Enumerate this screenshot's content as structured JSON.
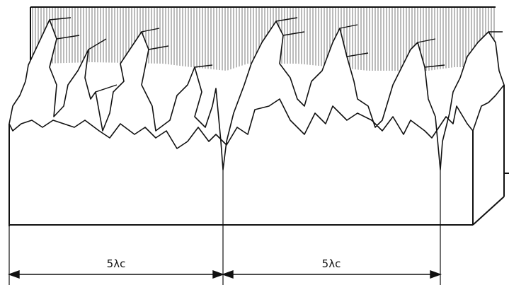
{
  "diagram": {
    "stroke_color": "#111111",
    "hatch_color": "#555555",
    "background": "#ffffff",
    "dimensions": [
      {
        "label": "5λc"
      },
      {
        "label": "5λc"
      }
    ]
  }
}
